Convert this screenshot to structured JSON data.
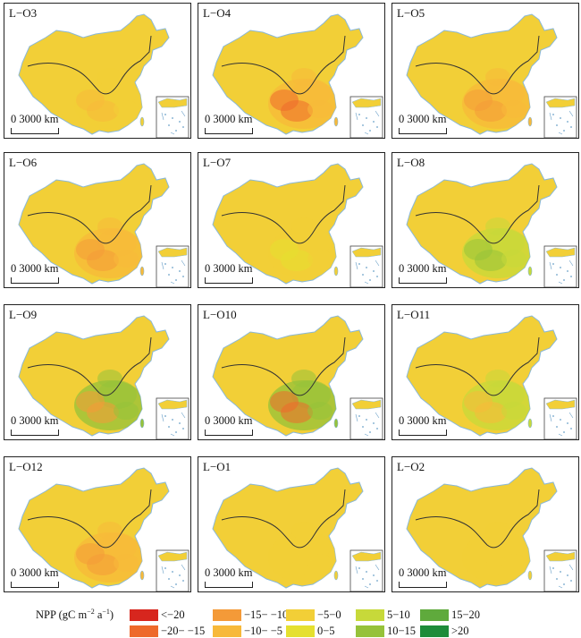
{
  "panels": [
    {
      "label": "L−O3",
      "scale": "0  3000 km"
    },
    {
      "label": "L−O4",
      "scale": "0  3000 km"
    },
    {
      "label": "L−O5",
      "scale": "0  3000 km"
    },
    {
      "label": "L−O6",
      "scale": "0  3000 km"
    },
    {
      "label": "L−O7",
      "scale": "0  3000 km"
    },
    {
      "label": "L−O8",
      "scale": "0  3000 km"
    },
    {
      "label": "L−O9",
      "scale": "0  3000 km"
    },
    {
      "label": "L−O10",
      "scale": "0  3000 km"
    },
    {
      "label": "L−O11",
      "scale": "0  3000 km"
    },
    {
      "label": "L−O12",
      "scale": "0  3000 km"
    },
    {
      "label": "L−O1",
      "scale": "0  3000 km"
    },
    {
      "label": "L−O2",
      "scale": "0  3000 km"
    }
  ],
  "legend": {
    "title": "NPP (gC m",
    "title_sup1": "−2",
    "title_mid": "a",
    "title_sup2": "−1",
    "title_end": ")",
    "items": [
      {
        "label": "<−20",
        "color": "#d7261e"
      },
      {
        "label": "−20− −15",
        "color": "#ee6a2b"
      },
      {
        "label": "−15− −10",
        "color": "#f49a38"
      },
      {
        "label": "−10− −5",
        "color": "#f7b93a"
      },
      {
        "label": "−5−0",
        "color": "#f2cf37"
      },
      {
        "label": "0−5",
        "color": "#e5e02f"
      },
      {
        "label": "5−10",
        "color": "#c7d93a"
      },
      {
        "label": "10−15",
        "color": "#96c23a"
      },
      {
        "label": "15−20",
        "color": "#5faa3c"
      },
      {
        "label": ">20",
        "color": "#1e8c3a"
      }
    ]
  }
}
